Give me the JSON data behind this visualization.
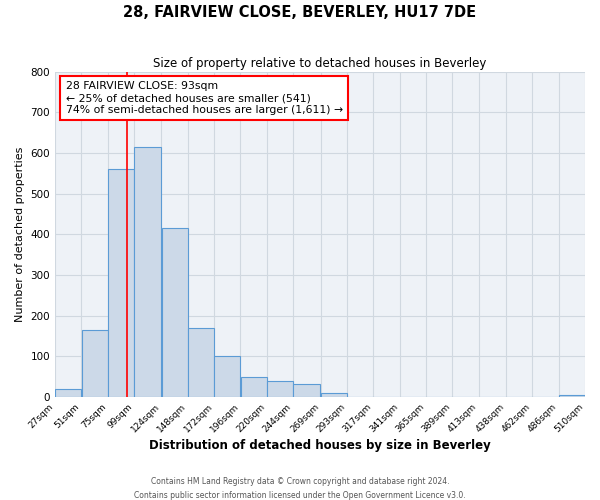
{
  "title": "28, FAIRVIEW CLOSE, BEVERLEY, HU17 7DE",
  "subtitle": "Size of property relative to detached houses in Beverley",
  "xlabel": "Distribution of detached houses by size in Beverley",
  "ylabel": "Number of detached properties",
  "bar_left_edges": [
    27,
    51,
    75,
    99,
    124,
    148,
    172,
    196,
    220,
    244,
    269,
    293,
    317,
    341,
    365,
    389,
    413,
    438,
    462,
    486
  ],
  "bar_widths": [
    24,
    24,
    24,
    25,
    24,
    24,
    24,
    24,
    24,
    25,
    24,
    24,
    24,
    24,
    24,
    24,
    25,
    24,
    24,
    24
  ],
  "bar_heights": [
    20,
    165,
    560,
    615,
    415,
    170,
    100,
    50,
    40,
    33,
    10,
    0,
    0,
    0,
    0,
    0,
    0,
    0,
    0,
    5
  ],
  "bar_facecolor": "#ccd9e8",
  "bar_edgecolor": "#5b9bd5",
  "xtick_labels": [
    "27sqm",
    "51sqm",
    "75sqm",
    "99sqm",
    "124sqm",
    "148sqm",
    "172sqm",
    "196sqm",
    "220sqm",
    "244sqm",
    "269sqm",
    "293sqm",
    "317sqm",
    "341sqm",
    "365sqm",
    "389sqm",
    "413sqm",
    "438sqm",
    "462sqm",
    "486sqm",
    "510sqm"
  ],
  "ylim": [
    0,
    800
  ],
  "yticks": [
    0,
    100,
    200,
    300,
    400,
    500,
    600,
    700,
    800
  ],
  "grid_color": "#d0d8e0",
  "red_line_x": 93,
  "annot_line1": "28 FAIRVIEW CLOSE: 93sqm",
  "annot_line2": "← 25% of detached houses are smaller (541)",
  "annot_line3": "74% of semi-detached houses are larger (1,611) →",
  "footer_line1": "Contains HM Land Registry data © Crown copyright and database right 2024.",
  "footer_line2": "Contains public sector information licensed under the Open Government Licence v3.0.",
  "bg_color": "#eef2f7"
}
